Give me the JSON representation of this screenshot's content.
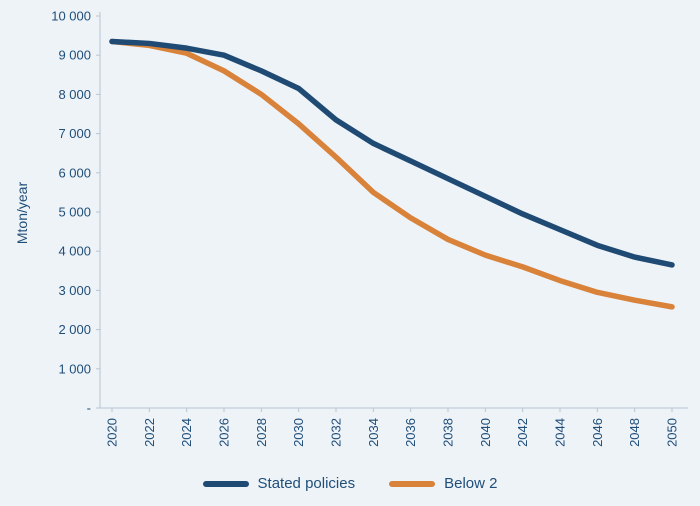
{
  "chart_data": {
    "type": "line",
    "title": "",
    "xlabel": "",
    "ylabel": "Mton/year",
    "ylim": [
      0,
      10000
    ],
    "ytick_step": 1000,
    "ytick_labels_bottom_to_top": [
      "-",
      "1 000",
      "2 000",
      "3 000",
      "4 000",
      "5 000",
      "6 000",
      "7 000",
      "8 000",
      "9 000",
      "10 000"
    ],
    "x": [
      2020,
      2022,
      2024,
      2026,
      2028,
      2030,
      2032,
      2034,
      2036,
      2038,
      2040,
      2042,
      2044,
      2046,
      2048,
      2050
    ],
    "series": [
      {
        "name": "Stated policies",
        "color": "#1f4a73",
        "values": [
          9350,
          9300,
          9180,
          9000,
          8600,
          8150,
          7350,
          6750,
          6300,
          5850,
          5400,
          4950,
          4550,
          4150,
          3850,
          3650
        ]
      },
      {
        "name": "Below 2",
        "color": "#d9823a",
        "values": [
          9350,
          9250,
          9050,
          8600,
          8000,
          7250,
          6400,
          5500,
          4850,
          4300,
          3900,
          3600,
          3250,
          2950,
          2750,
          2580
        ]
      }
    ],
    "grid": false,
    "legend_position": "bottom"
  },
  "colors": {
    "background": "#eef3f8",
    "axis_line": "#b8c6d2",
    "label_text": "#1f4e79"
  }
}
